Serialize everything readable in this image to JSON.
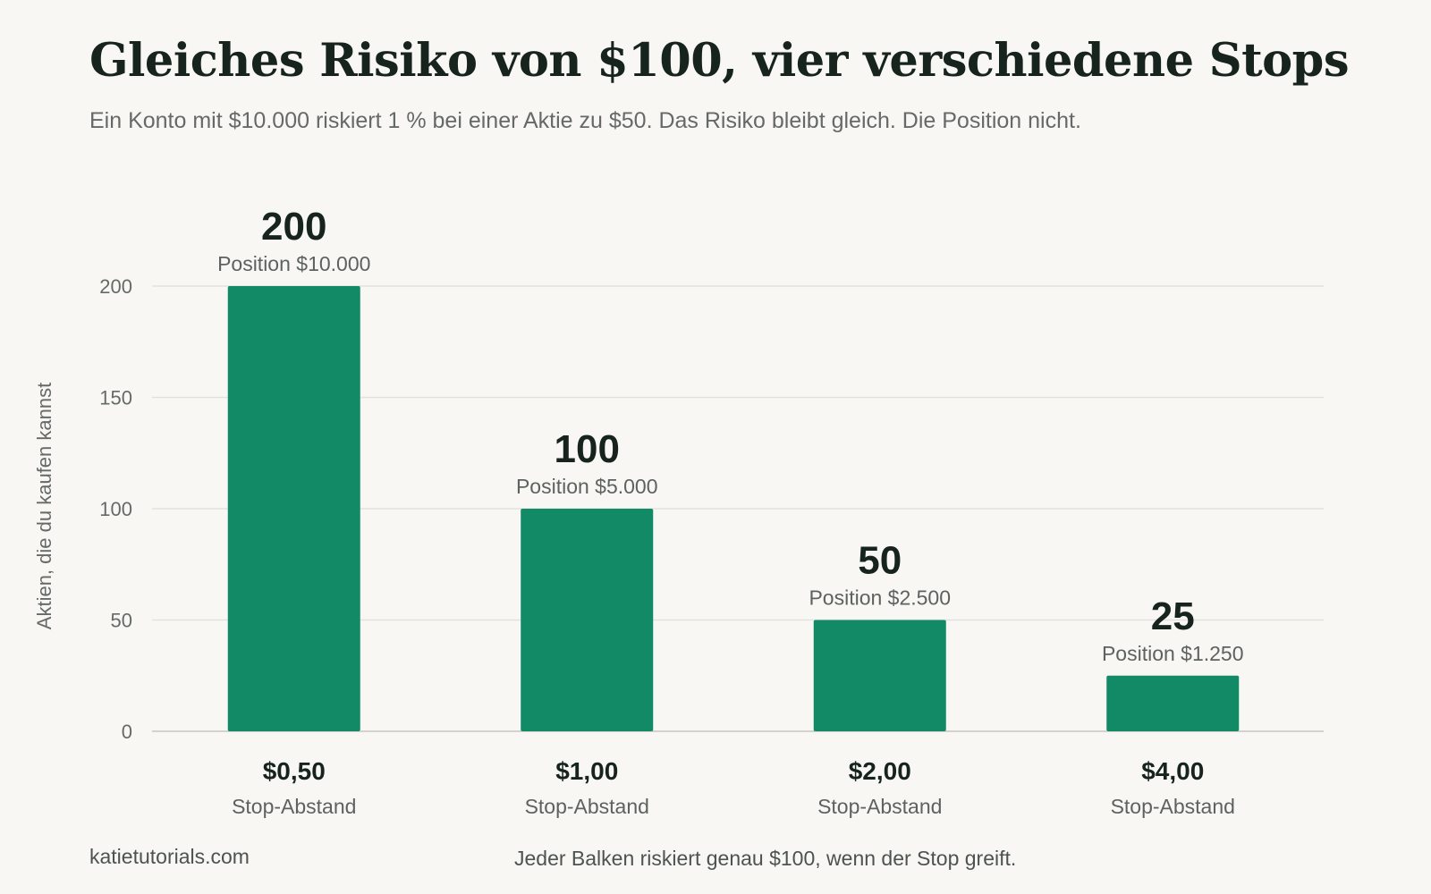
{
  "header": {
    "title": "Gleiches Risiko von $100, vier verschiedene Stops",
    "subtitle": "Ein Konto mit $10.000 riskiert 1 % bei einer Aktie zu $50. Das Risiko bleibt gleich. Die Position nicht."
  },
  "footer": {
    "source": "katietutorials.com",
    "note": "Jeder Balken riskiert genau $100, wenn der Stop greift."
  },
  "chart_data": {
    "type": "bar",
    "title": "Gleiches Risiko von $100, vier verschiedene Stops",
    "subtitle": "Ein Konto mit $10.000 riskiert 1 % bei einer Aktie zu $50. Das Risiko bleibt gleich. Die Position nicht.",
    "categories": [
      "$0,50",
      "$1,00",
      "$2,00",
      "$4,00"
    ],
    "category_sublabel": "Stop-Abstand",
    "values": [
      200,
      100,
      50,
      25
    ],
    "value_labels": [
      "200",
      "100",
      "50",
      "25"
    ],
    "position_labels": [
      "Position $10.000",
      "Position $5.000",
      "Position $2.500",
      "Position $1.250"
    ],
    "xlabel": "",
    "ylabel": "Aktien, die du kaufen kannst",
    "ylim": [
      0,
      200
    ],
    "yticks": [
      0,
      50,
      100,
      150,
      200
    ],
    "grid": true,
    "legend": "none",
    "bar_color": "#138a66"
  }
}
